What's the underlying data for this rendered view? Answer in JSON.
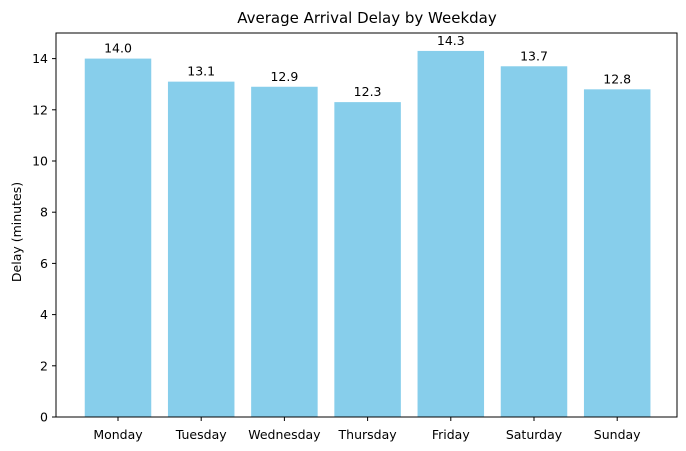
{
  "chart_data": {
    "type": "bar",
    "title": "Average Arrival Delay by Weekday",
    "xlabel": "",
    "ylabel": "Delay (minutes)",
    "categories": [
      "Monday",
      "Tuesday",
      "Wednesday",
      "Thursday",
      "Friday",
      "Saturday",
      "Sunday"
    ],
    "values": [
      14.0,
      13.1,
      12.9,
      12.3,
      14.3,
      13.7,
      12.8
    ],
    "value_labels": [
      "14.0",
      "13.1",
      "12.9",
      "12.3",
      "14.3",
      "13.7",
      "12.8"
    ],
    "ylim": [
      0,
      15
    ],
    "yticks": [
      0,
      2,
      4,
      6,
      8,
      10,
      12,
      14
    ],
    "ytick_labels": [
      "0",
      "2",
      "4",
      "6",
      "8",
      "10",
      "12",
      "14"
    ],
    "grid": false,
    "bar_color": "#87CEEB"
  }
}
